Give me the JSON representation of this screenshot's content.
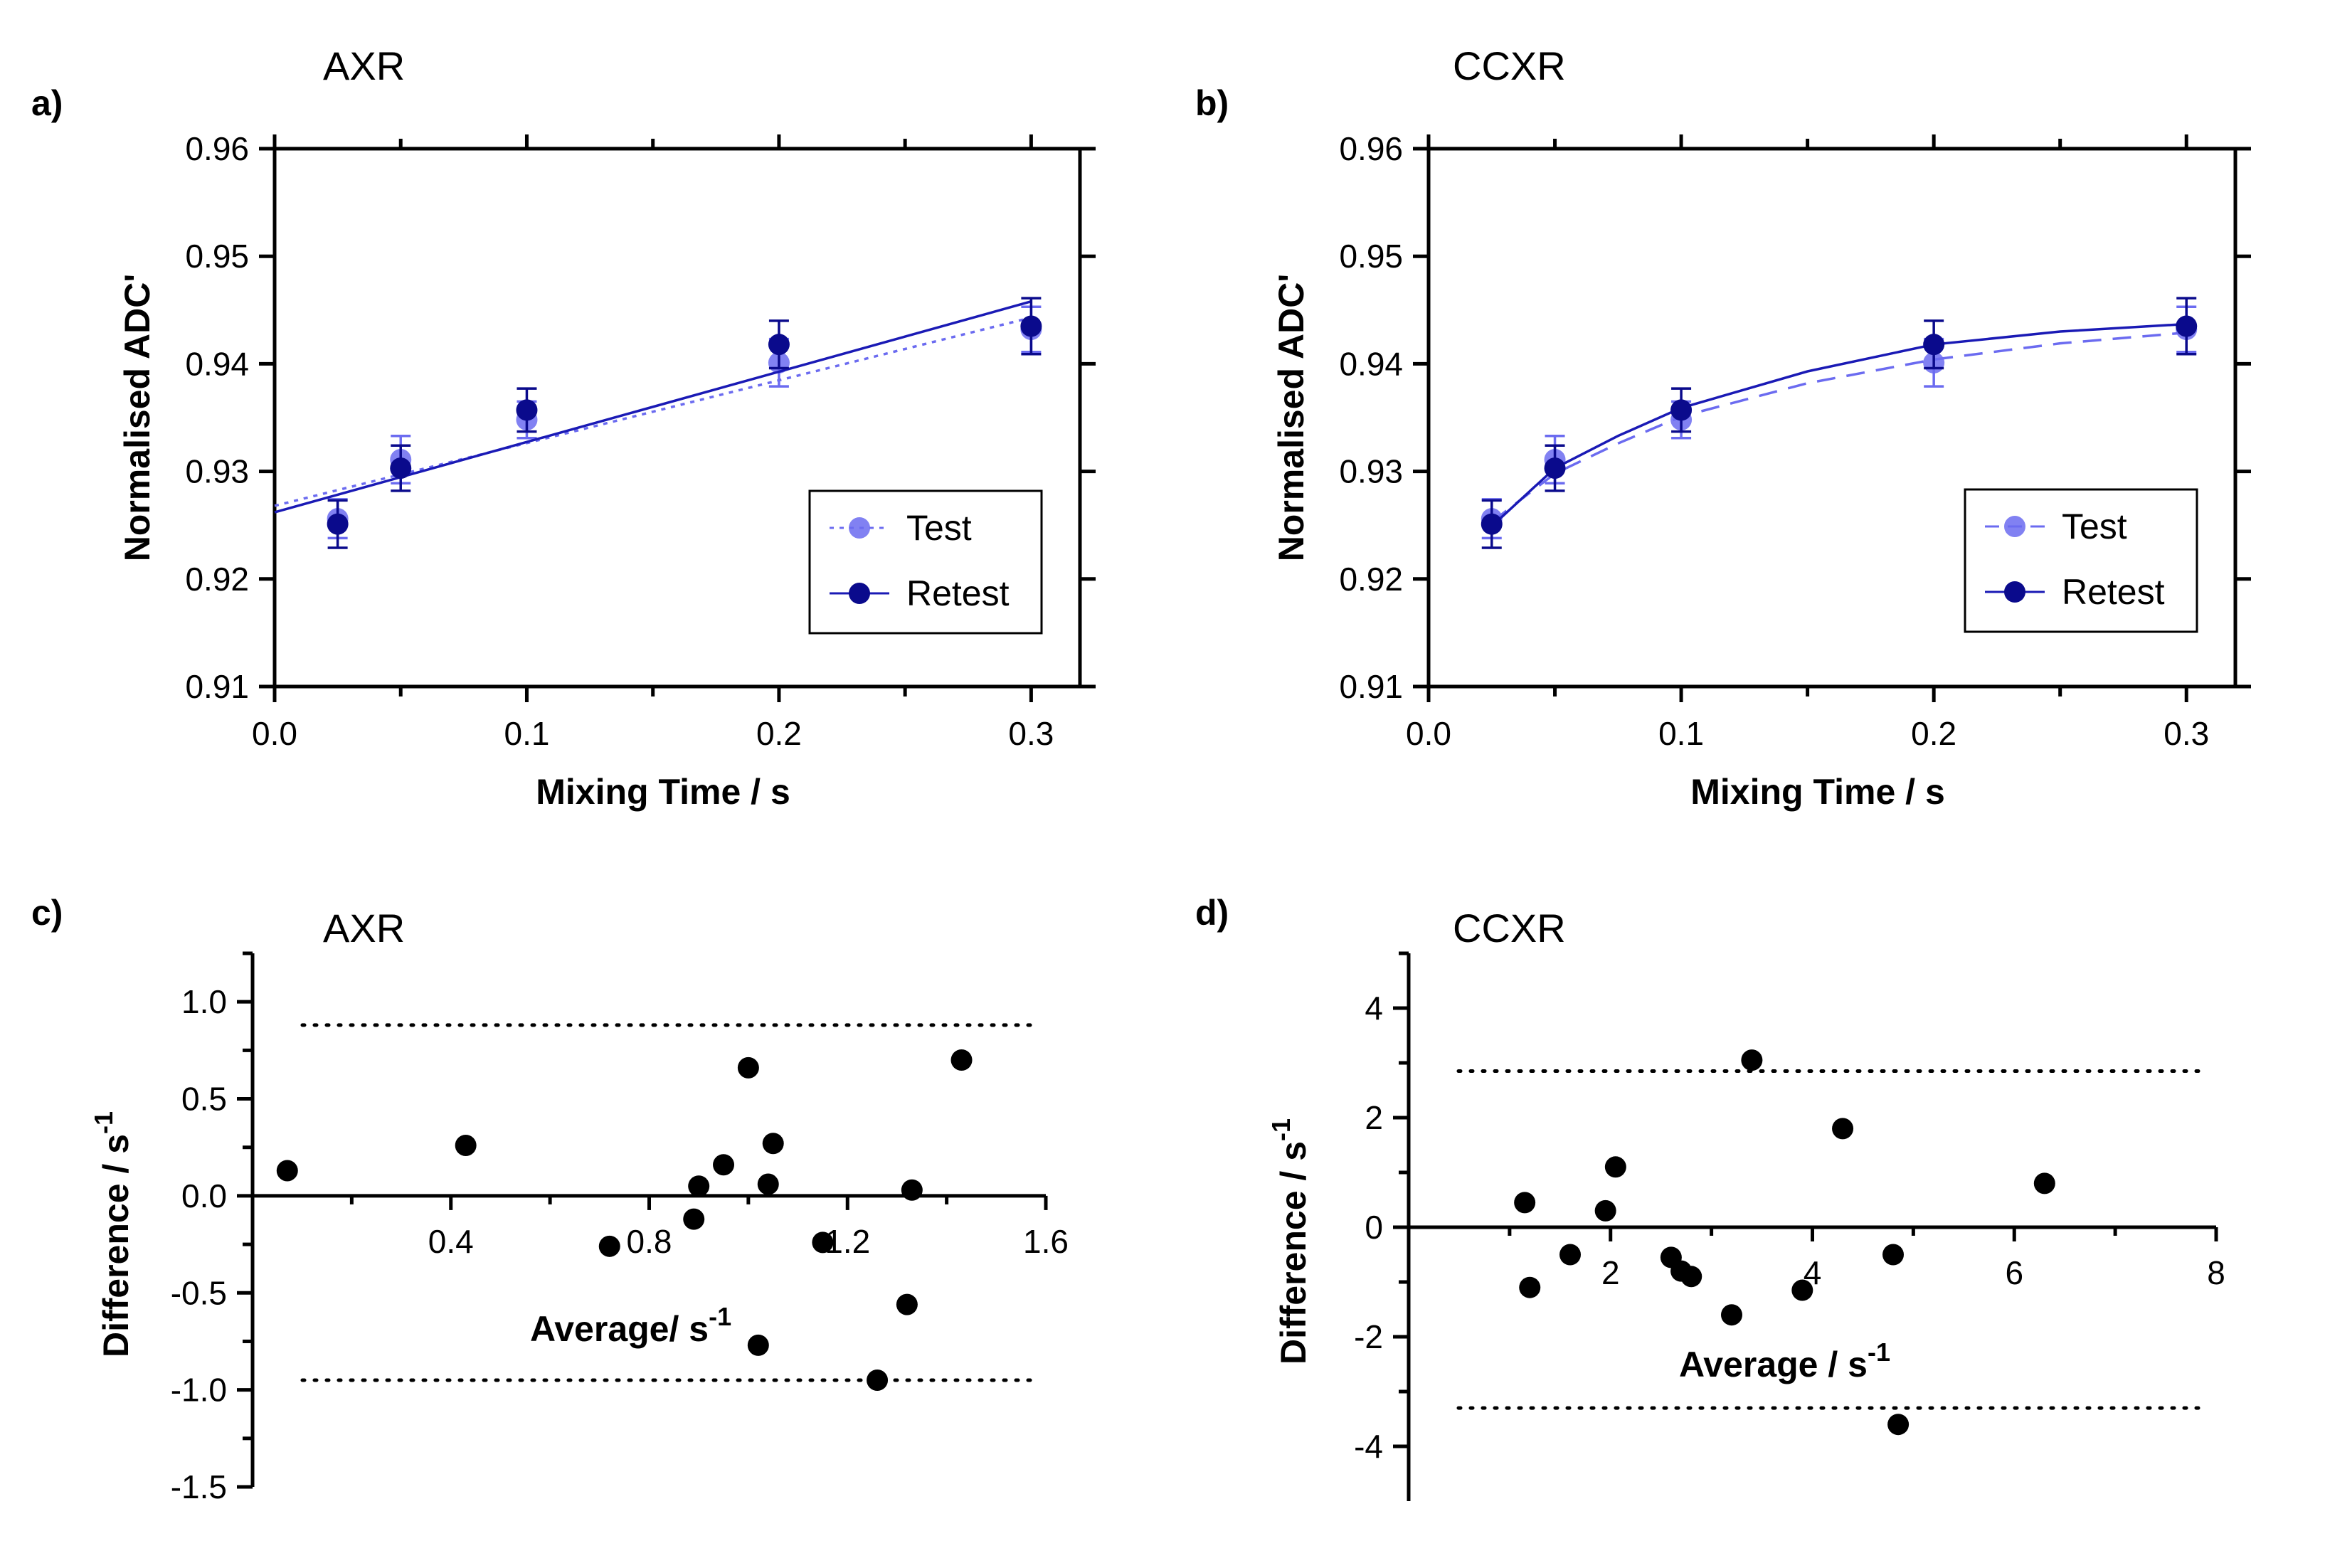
{
  "colors": {
    "test": "#6b6bf0",
    "retest": "#0a0a8c",
    "retest_line": "#1a1ab5",
    "black": "#000000"
  },
  "chart_data": [
    {
      "id": "a",
      "panel_label": "a)",
      "type": "scatter",
      "title": "AXR",
      "xlabel": "Mixing Time / s",
      "ylabel": "Normalised ADC'",
      "xlim": [
        0.0,
        0.325
      ],
      "ylim": [
        0.91,
        0.96
      ],
      "xticks": [
        0.0,
        0.1,
        0.2,
        0.3
      ],
      "xtick_labels": [
        "0.0",
        "0.1",
        "0.2",
        "0.3"
      ],
      "yticks": [
        0.91,
        0.92,
        0.93,
        0.94,
        0.95,
        0.96
      ],
      "ytick_labels": [
        "0.91",
        "0.92",
        "0.93",
        "0.94",
        "0.95",
        "0.96"
      ],
      "legend_position": "bottom-right",
      "series": [
        {
          "name": "Test",
          "x": [
            0.025,
            0.05,
            0.1,
            0.2,
            0.3
          ],
          "y": [
            0.9256,
            0.9311,
            0.9348,
            0.9401,
            0.9432
          ],
          "err": [
            0.0018,
            0.0022,
            0.0017,
            0.0022,
            0.0021
          ],
          "fit": {
            "x": [
              0.0,
              0.3
            ],
            "y": [
              0.9268,
              0.9443
            ]
          },
          "line_style": "dotted"
        },
        {
          "name": "Retest",
          "x": [
            0.025,
            0.05,
            0.1,
            0.2,
            0.3
          ],
          "y": [
            0.9251,
            0.9303,
            0.9357,
            0.9418,
            0.9435
          ],
          "err": [
            0.0022,
            0.0021,
            0.002,
            0.0022,
            0.0026
          ],
          "fit": {
            "x": [
              0.0,
              0.3
            ],
            "y": [
              0.9262,
              0.9458
            ]
          },
          "line_style": "solid"
        }
      ]
    },
    {
      "id": "b",
      "panel_label": "b)",
      "type": "scatter",
      "title": "CCXR",
      "xlabel": "Mixing Time / s",
      "ylabel": "Normalised ADC'",
      "xlim": [
        0.0,
        0.325
      ],
      "ylim": [
        0.91,
        0.96
      ],
      "xticks": [
        0.0,
        0.1,
        0.2,
        0.3
      ],
      "xtick_labels": [
        "0.0",
        "0.1",
        "0.2",
        "0.3"
      ],
      "yticks": [
        0.91,
        0.92,
        0.93,
        0.94,
        0.95,
        0.96
      ],
      "ytick_labels": [
        "0.91",
        "0.92",
        "0.93",
        "0.94",
        "0.95",
        "0.96"
      ],
      "legend_position": "bottom-right",
      "series": [
        {
          "name": "Test",
          "x": [
            0.025,
            0.05,
            0.1,
            0.2,
            0.3
          ],
          "y": [
            0.9256,
            0.9311,
            0.9348,
            0.9401,
            0.9432
          ],
          "err": [
            0.0018,
            0.0022,
            0.0017,
            0.0022,
            0.0021
          ],
          "fit": {
            "x": [
              0.025,
              0.05,
              0.075,
              0.1,
              0.15,
              0.2,
              0.25,
              0.3
            ],
            "y": [
              0.9253,
              0.9298,
              0.9326,
              0.9351,
              0.9382,
              0.9404,
              0.9419,
              0.9429
            ]
          },
          "line_style": "dashed"
        },
        {
          "name": "Retest",
          "x": [
            0.025,
            0.05,
            0.1,
            0.2,
            0.3
          ],
          "y": [
            0.9251,
            0.9303,
            0.9357,
            0.9418,
            0.9435
          ],
          "err": [
            0.0022,
            0.0021,
            0.002,
            0.0022,
            0.0026
          ],
          "fit": {
            "x": [
              0.025,
              0.05,
              0.075,
              0.1,
              0.15,
              0.2,
              0.25,
              0.3
            ],
            "y": [
              0.9249,
              0.9303,
              0.9333,
              0.9359,
              0.9393,
              0.9418,
              0.943,
              0.9437
            ]
          },
          "line_style": "solid"
        }
      ]
    },
    {
      "id": "c",
      "panel_label": "c)",
      "type": "scatter",
      "title": "AXR",
      "xlabel": "Average/ s",
      "xlabel_sup": "-1",
      "ylabel": "Difference / s",
      "ylabel_sup": "-1",
      "xlim": [
        0.0,
        1.6
      ],
      "ylim": [
        -1.5,
        1.25
      ],
      "xticks": [
        0.4,
        0.8,
        1.2,
        1.6
      ],
      "xtick_labels": [
        "0.4",
        "0.8",
        "1.2",
        "1.6"
      ],
      "yticks": [
        -1.5,
        -1.0,
        -0.5,
        0.0,
        0.5,
        1.0
      ],
      "ytick_labels": [
        "-1.5",
        "-1.0",
        "-0.5",
        "0.0",
        "0.5",
        "1.0"
      ],
      "limits_of_agreement": [
        0.88,
        -0.95
      ],
      "points": {
        "x": [
          0.07,
          0.43,
          0.72,
          0.89,
          0.9,
          0.95,
          1.0,
          1.02,
          1.04,
          1.05,
          1.15,
          1.26,
          1.32,
          1.33,
          1.43
        ],
        "y": [
          0.13,
          0.26,
          -0.26,
          -0.12,
          0.05,
          0.16,
          0.66,
          -0.77,
          0.06,
          0.27,
          -0.24,
          -0.95,
          -0.56,
          0.03,
          0.7
        ]
      }
    },
    {
      "id": "d",
      "panel_label": "d)",
      "type": "scatter",
      "title": "CCXR",
      "xlabel": "Average / s",
      "xlabel_sup": "-1",
      "ylabel": "Difference / s",
      "ylabel_sup": "-1",
      "xlim": [
        0.0,
        8.0
      ],
      "ylim": [
        -5.0,
        5.0
      ],
      "xticks": [
        2,
        4,
        6,
        8
      ],
      "xtick_labels": [
        "2",
        "4",
        "6",
        "8"
      ],
      "yticks": [
        -4,
        -2,
        0,
        2,
        4
      ],
      "ytick_labels": [
        "-4",
        "-2",
        "0",
        "2",
        "4"
      ],
      "limits_of_agreement": [
        2.85,
        -3.3
      ],
      "points": {
        "x": [
          1.15,
          1.2,
          1.6,
          1.95,
          2.05,
          2.6,
          2.7,
          2.8,
          3.2,
          3.4,
          3.9,
          4.3,
          4.8,
          4.85,
          6.3
        ],
        "y": [
          0.45,
          -1.1,
          -0.5,
          0.3,
          1.1,
          -0.55,
          -0.8,
          -0.9,
          -1.6,
          3.05,
          -1.15,
          1.8,
          -0.5,
          -3.6,
          0.8
        ]
      }
    }
  ]
}
